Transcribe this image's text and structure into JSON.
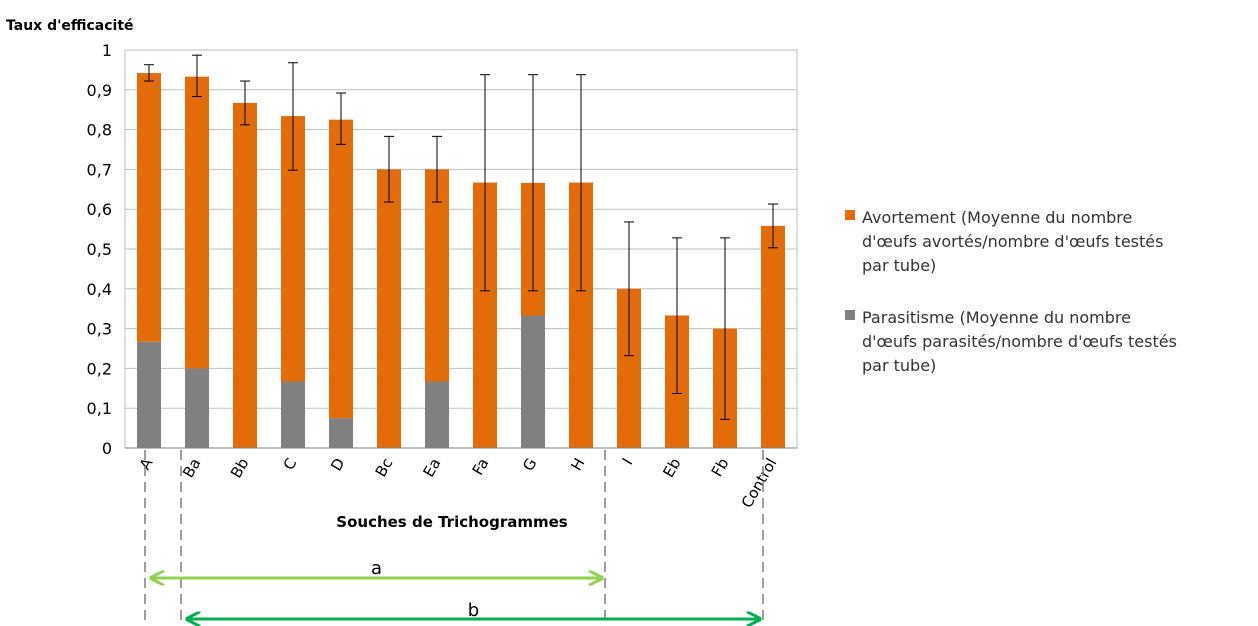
{
  "chart_data": {
    "type": "bar",
    "stacked": true,
    "ylabel": "Taux d'efficacité",
    "xlabel": "Souches de Trichogrammes",
    "ylim": [
      0,
      1
    ],
    "yticks": [
      "0",
      "0,1",
      "0,2",
      "0,3",
      "0,4",
      "0,5",
      "0,6",
      "0,7",
      "0,8",
      "0,9",
      "1"
    ],
    "grid": true,
    "legend_position": "right",
    "categories": [
      "A",
      "Ba",
      "Bb",
      "C",
      "D",
      "Bc",
      "Ea",
      "Fa",
      "G",
      "H",
      "I",
      "Eb",
      "Fb",
      "Control"
    ],
    "series": [
      {
        "name": "Parasitisme (Moyenne du nombre d'œufs parasités/nombre d'œufs testés par tube)",
        "color": "#808080",
        "values": [
          0.267,
          0.2,
          0,
          0.167,
          0.075,
          0,
          0.167,
          0,
          0.333,
          0,
          0,
          0,
          0,
          0
        ]
      },
      {
        "name": "Avortement (Moyenne du nombre d'œufs avortés/nombre d'œufs testés par tube)",
        "color": "#E36C0A",
        "values": [
          0.675,
          0.733,
          0.867,
          0.667,
          0.75,
          0.7,
          0.533,
          0.667,
          0.333,
          0.667,
          0.4,
          0.333,
          0.3,
          0.558
        ]
      }
    ],
    "error_bars": {
      "low": [
        0.922,
        0.883,
        0.812,
        0.698,
        0.763,
        0.618,
        0.618,
        0.395,
        0.395,
        0.395,
        0.232,
        0.137,
        0.072,
        0.503
      ],
      "high": [
        0.963,
        0.987,
        0.922,
        0.968,
        0.892,
        0.783,
        0.783,
        0.938,
        0.938,
        0.938,
        0.568,
        0.528,
        0.528,
        0.613
      ]
    },
    "groups": [
      {
        "label": "a",
        "from": "A",
        "to": "H",
        "color": "#92D050"
      },
      {
        "label": "b",
        "from": "Ba",
        "to": "Fb",
        "color": "#00B050"
      }
    ]
  }
}
